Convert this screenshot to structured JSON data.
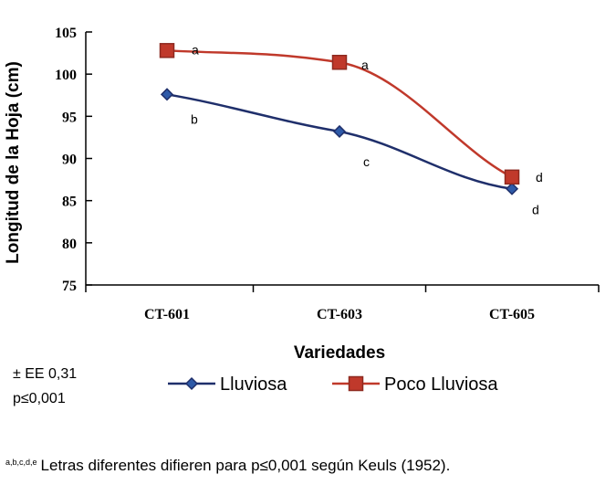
{
  "chart_data": {
    "type": "line",
    "categories": [
      "CT-601",
      "CT-603",
      "CT-605"
    ],
    "series": [
      {
        "name": "Lluviosa",
        "values": [
          97.6,
          93.2,
          86.4
        ],
        "labels": [
          "b",
          "c",
          "d"
        ],
        "color": "#1f2f6b",
        "marker": "diamond",
        "marker_color": "#2e5aa8"
      },
      {
        "name": "Poco Lluviosa",
        "values": [
          102.8,
          101.4,
          87.8
        ],
        "labels": [
          "a",
          "a",
          "d"
        ],
        "color": "#c0392b",
        "marker": "square",
        "marker_color": "#c0392b"
      }
    ],
    "xlabel": "Variedades",
    "ylabel": "Longitud de la Hoja (cm)",
    "ylim": [
      75,
      105
    ],
    "yticks": [
      75,
      80,
      85,
      90,
      95,
      100,
      105
    ],
    "grid": false,
    "legend": "bottom"
  },
  "notes": {
    "ee": "± EE 0,31",
    "p": "p≤0,001",
    "footnote_sup": "a,b,c,d,e",
    "footnote_text": "Letras diferentes difieren para p≤0,001 según Keuls (1952)."
  }
}
